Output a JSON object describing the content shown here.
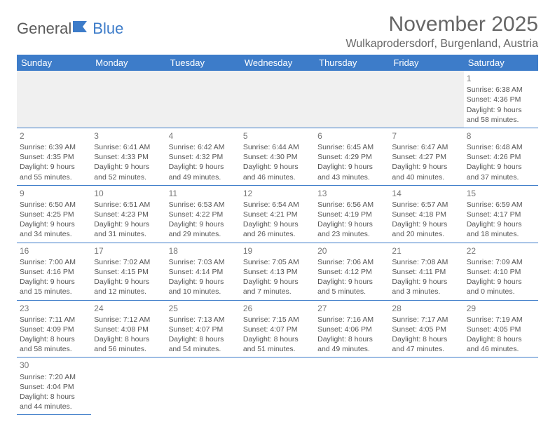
{
  "logo": {
    "text1": "General",
    "text2": "Blue"
  },
  "title": "November 2025",
  "location": "Wulkaprodersdorf, Burgenland, Austria",
  "colors": {
    "header_bg": "#3d7cc9",
    "header_text": "#ffffff",
    "border": "#3d7cc9",
    "body_text": "#555555",
    "title_text": "#666666"
  },
  "weekdays": [
    "Sunday",
    "Monday",
    "Tuesday",
    "Wednesday",
    "Thursday",
    "Friday",
    "Saturday"
  ],
  "weeks": [
    [
      null,
      null,
      null,
      null,
      null,
      null,
      {
        "d": "1",
        "sr": "Sunrise: 6:38 AM",
        "ss": "Sunset: 4:36 PM",
        "dl1": "Daylight: 9 hours",
        "dl2": "and 58 minutes."
      }
    ],
    [
      {
        "d": "2",
        "sr": "Sunrise: 6:39 AM",
        "ss": "Sunset: 4:35 PM",
        "dl1": "Daylight: 9 hours",
        "dl2": "and 55 minutes."
      },
      {
        "d": "3",
        "sr": "Sunrise: 6:41 AM",
        "ss": "Sunset: 4:33 PM",
        "dl1": "Daylight: 9 hours",
        "dl2": "and 52 minutes."
      },
      {
        "d": "4",
        "sr": "Sunrise: 6:42 AM",
        "ss": "Sunset: 4:32 PM",
        "dl1": "Daylight: 9 hours",
        "dl2": "and 49 minutes."
      },
      {
        "d": "5",
        "sr": "Sunrise: 6:44 AM",
        "ss": "Sunset: 4:30 PM",
        "dl1": "Daylight: 9 hours",
        "dl2": "and 46 minutes."
      },
      {
        "d": "6",
        "sr": "Sunrise: 6:45 AM",
        "ss": "Sunset: 4:29 PM",
        "dl1": "Daylight: 9 hours",
        "dl2": "and 43 minutes."
      },
      {
        "d": "7",
        "sr": "Sunrise: 6:47 AM",
        "ss": "Sunset: 4:27 PM",
        "dl1": "Daylight: 9 hours",
        "dl2": "and 40 minutes."
      },
      {
        "d": "8",
        "sr": "Sunrise: 6:48 AM",
        "ss": "Sunset: 4:26 PM",
        "dl1": "Daylight: 9 hours",
        "dl2": "and 37 minutes."
      }
    ],
    [
      {
        "d": "9",
        "sr": "Sunrise: 6:50 AM",
        "ss": "Sunset: 4:25 PM",
        "dl1": "Daylight: 9 hours",
        "dl2": "and 34 minutes."
      },
      {
        "d": "10",
        "sr": "Sunrise: 6:51 AM",
        "ss": "Sunset: 4:23 PM",
        "dl1": "Daylight: 9 hours",
        "dl2": "and 31 minutes."
      },
      {
        "d": "11",
        "sr": "Sunrise: 6:53 AM",
        "ss": "Sunset: 4:22 PM",
        "dl1": "Daylight: 9 hours",
        "dl2": "and 29 minutes."
      },
      {
        "d": "12",
        "sr": "Sunrise: 6:54 AM",
        "ss": "Sunset: 4:21 PM",
        "dl1": "Daylight: 9 hours",
        "dl2": "and 26 minutes."
      },
      {
        "d": "13",
        "sr": "Sunrise: 6:56 AM",
        "ss": "Sunset: 4:19 PM",
        "dl1": "Daylight: 9 hours",
        "dl2": "and 23 minutes."
      },
      {
        "d": "14",
        "sr": "Sunrise: 6:57 AM",
        "ss": "Sunset: 4:18 PM",
        "dl1": "Daylight: 9 hours",
        "dl2": "and 20 minutes."
      },
      {
        "d": "15",
        "sr": "Sunrise: 6:59 AM",
        "ss": "Sunset: 4:17 PM",
        "dl1": "Daylight: 9 hours",
        "dl2": "and 18 minutes."
      }
    ],
    [
      {
        "d": "16",
        "sr": "Sunrise: 7:00 AM",
        "ss": "Sunset: 4:16 PM",
        "dl1": "Daylight: 9 hours",
        "dl2": "and 15 minutes."
      },
      {
        "d": "17",
        "sr": "Sunrise: 7:02 AM",
        "ss": "Sunset: 4:15 PM",
        "dl1": "Daylight: 9 hours",
        "dl2": "and 12 minutes."
      },
      {
        "d": "18",
        "sr": "Sunrise: 7:03 AM",
        "ss": "Sunset: 4:14 PM",
        "dl1": "Daylight: 9 hours",
        "dl2": "and 10 minutes."
      },
      {
        "d": "19",
        "sr": "Sunrise: 7:05 AM",
        "ss": "Sunset: 4:13 PM",
        "dl1": "Daylight: 9 hours",
        "dl2": "and 7 minutes."
      },
      {
        "d": "20",
        "sr": "Sunrise: 7:06 AM",
        "ss": "Sunset: 4:12 PM",
        "dl1": "Daylight: 9 hours",
        "dl2": "and 5 minutes."
      },
      {
        "d": "21",
        "sr": "Sunrise: 7:08 AM",
        "ss": "Sunset: 4:11 PM",
        "dl1": "Daylight: 9 hours",
        "dl2": "and 3 minutes."
      },
      {
        "d": "22",
        "sr": "Sunrise: 7:09 AM",
        "ss": "Sunset: 4:10 PM",
        "dl1": "Daylight: 9 hours",
        "dl2": "and 0 minutes."
      }
    ],
    [
      {
        "d": "23",
        "sr": "Sunrise: 7:11 AM",
        "ss": "Sunset: 4:09 PM",
        "dl1": "Daylight: 8 hours",
        "dl2": "and 58 minutes."
      },
      {
        "d": "24",
        "sr": "Sunrise: 7:12 AM",
        "ss": "Sunset: 4:08 PM",
        "dl1": "Daylight: 8 hours",
        "dl2": "and 56 minutes."
      },
      {
        "d": "25",
        "sr": "Sunrise: 7:13 AM",
        "ss": "Sunset: 4:07 PM",
        "dl1": "Daylight: 8 hours",
        "dl2": "and 54 minutes."
      },
      {
        "d": "26",
        "sr": "Sunrise: 7:15 AM",
        "ss": "Sunset: 4:07 PM",
        "dl1": "Daylight: 8 hours",
        "dl2": "and 51 minutes."
      },
      {
        "d": "27",
        "sr": "Sunrise: 7:16 AM",
        "ss": "Sunset: 4:06 PM",
        "dl1": "Daylight: 8 hours",
        "dl2": "and 49 minutes."
      },
      {
        "d": "28",
        "sr": "Sunrise: 7:17 AM",
        "ss": "Sunset: 4:05 PM",
        "dl1": "Daylight: 8 hours",
        "dl2": "and 47 minutes."
      },
      {
        "d": "29",
        "sr": "Sunrise: 7:19 AM",
        "ss": "Sunset: 4:05 PM",
        "dl1": "Daylight: 8 hours",
        "dl2": "and 46 minutes."
      }
    ],
    [
      {
        "d": "30",
        "sr": "Sunrise: 7:20 AM",
        "ss": "Sunset: 4:04 PM",
        "dl1": "Daylight: 8 hours",
        "dl2": "and 44 minutes."
      },
      null,
      null,
      null,
      null,
      null,
      null
    ]
  ]
}
